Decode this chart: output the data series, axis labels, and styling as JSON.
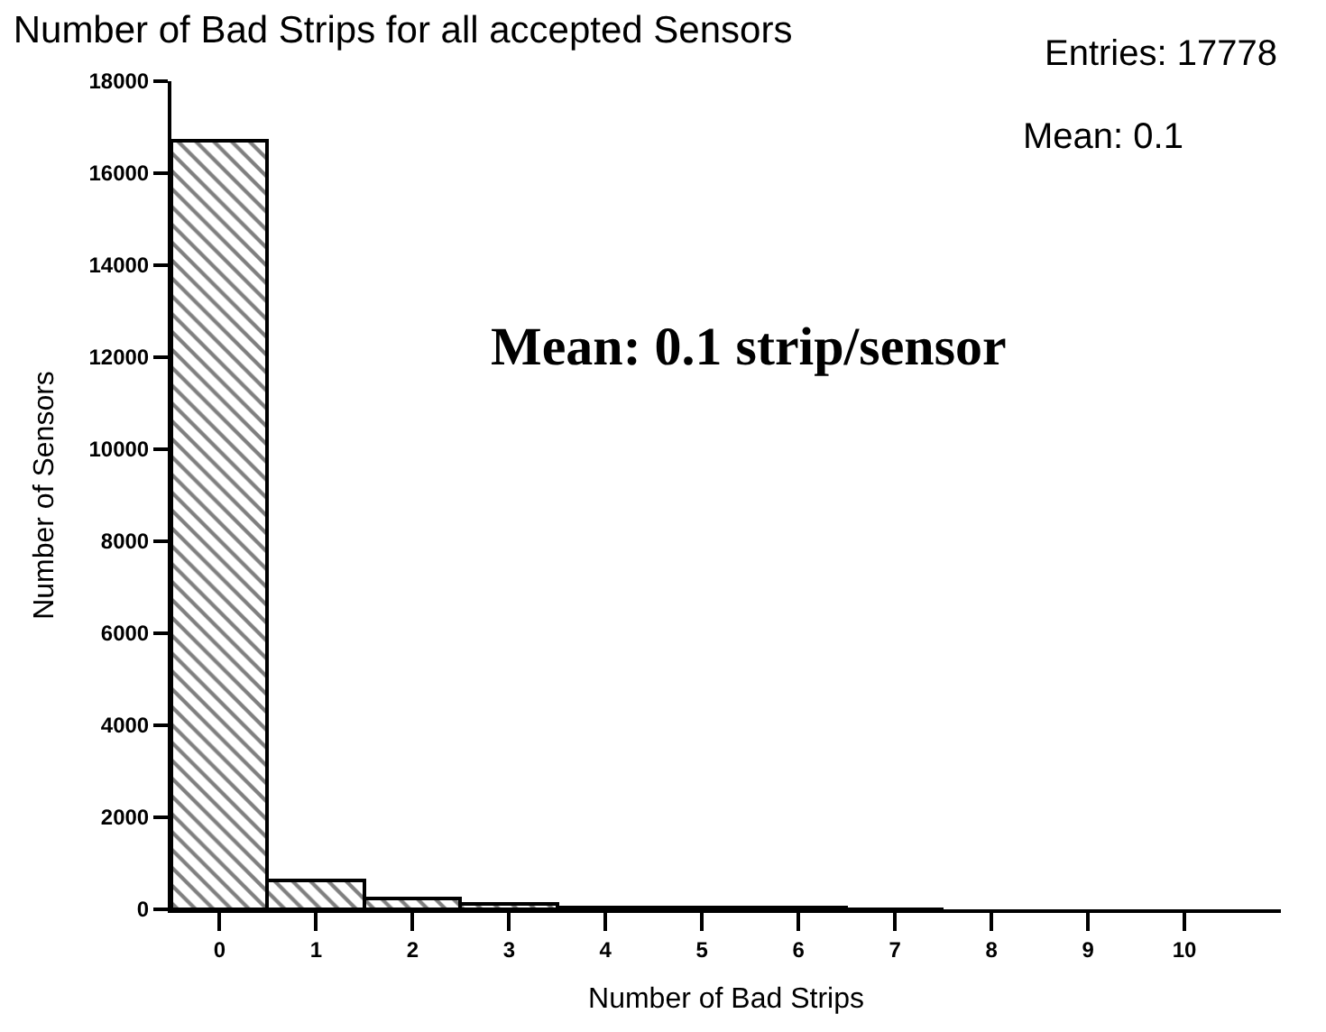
{
  "chart_data": {
    "title": "Number of Bad Strips for all accepted Sensors",
    "xlabel": "Number of Bad Strips",
    "ylabel": "Number of Sensors",
    "bins": [
      -0.5,
      0.5,
      1.5,
      2.5,
      3.5,
      4.5,
      5.5,
      6.5,
      7.5
    ],
    "values": [
      16700,
      640,
      220,
      100,
      50,
      30,
      20,
      10
    ],
    "color": "#000000",
    "xlim": [
      -0.5,
      11
    ],
    "xticks": [
      0,
      1,
      2,
      3,
      4,
      5,
      6,
      7,
      8,
      9,
      10
    ],
    "ylim": [
      0,
      18000
    ],
    "yticks": [
      0,
      2000,
      4000,
      6000,
      8000,
      10000,
      12000,
      14000,
      16000,
      18000
    ],
    "annotations": [
      "Entries: 17778",
      "Mean: 0.1",
      "Mean: 0.1 strip/sensor"
    ],
    "type": "histogram"
  }
}
